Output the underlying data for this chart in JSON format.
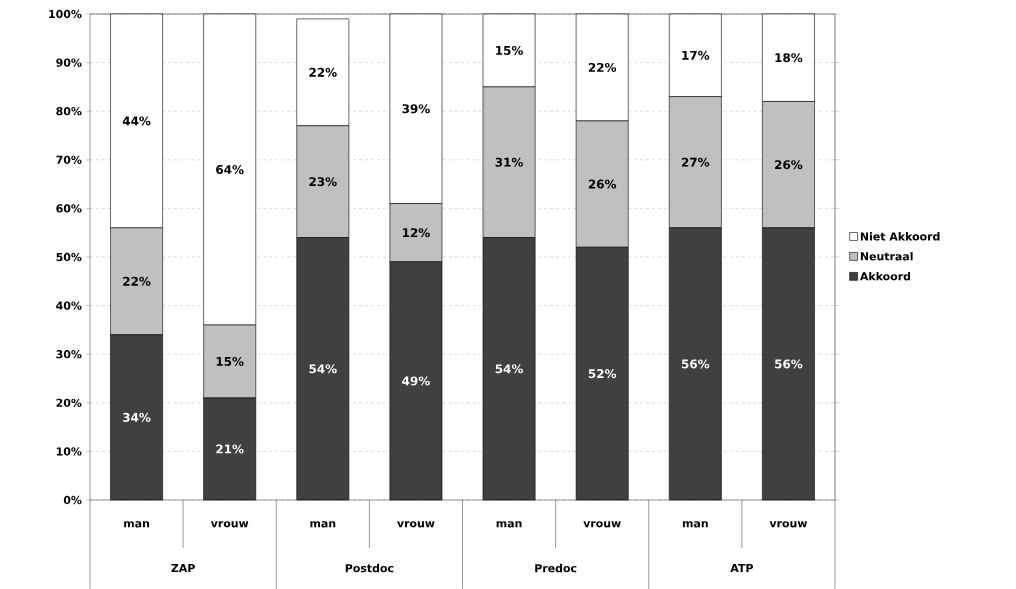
{
  "chart_data": {
    "type": "bar",
    "stacked": true,
    "categories": [
      "man",
      "vrouw",
      "man",
      "vrouw",
      "man",
      "vrouw",
      "man",
      "vrouw"
    ],
    "annotations": [
      "ZAP",
      "Postdoc",
      "Predoc",
      "ATP"
    ],
    "series": [
      {
        "name": "Akkoord",
        "color": "#404040",
        "values": [
          34,
          21,
          54,
          49,
          54,
          52,
          56,
          56
        ],
        "value_labels": [
          "34%",
          "21%",
          "54%",
          "49%",
          "54%",
          "52%",
          "56%",
          "56%"
        ]
      },
      {
        "name": "Neutraal",
        "color": "#c0c0c0",
        "values": [
          22,
          15,
          23,
          12,
          31,
          26,
          27,
          26
        ],
        "value_labels": [
          "22%",
          "15%",
          "23%",
          "12%",
          "31%",
          "26%",
          "27%",
          "26%"
        ]
      },
      {
        "name": "Niet Akkoord",
        "color": "#ffffff",
        "values": [
          44,
          64,
          22,
          39,
          15,
          22,
          17,
          18
        ],
        "value_labels": [
          "44%",
          "64%",
          "22%",
          "39%",
          "15%",
          "22%",
          "17%",
          "18%"
        ]
      }
    ],
    "ylim": [
      0,
      100
    ],
    "yticks": [
      {
        "value": 0,
        "label": "0%"
      },
      {
        "value": 10,
        "label": "10%"
      },
      {
        "value": 20,
        "label": "20%"
      },
      {
        "value": 30,
        "label": "30%"
      },
      {
        "value": 40,
        "label": "40%"
      },
      {
        "value": 50,
        "label": "50%"
      },
      {
        "value": 60,
        "label": "60%"
      },
      {
        "value": 70,
        "label": "70%"
      },
      {
        "value": 80,
        "label": "80%"
      },
      {
        "value": 90,
        "label": "90%"
      },
      {
        "value": 100,
        "label": "100%"
      }
    ],
    "grid": "y",
    "legend": "right"
  }
}
